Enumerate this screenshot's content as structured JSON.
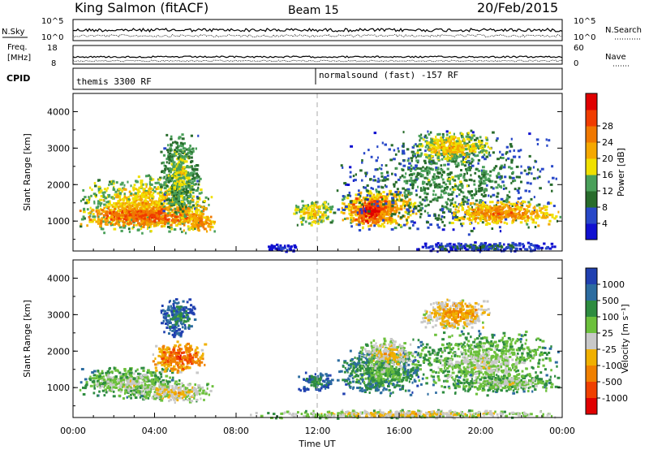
{
  "header": {
    "station": "King Salmon (fitACF)",
    "beam": "Beam 15",
    "date": "20/Feb/2015"
  },
  "summary_panels": {
    "nsky_label": "N.Sky",
    "nsearch_label": "N.Search",
    "freq_label_line1": "Freq.",
    "freq_label_line2": "[MHz]",
    "nave_label": "Nave",
    "cpid_label": "CPID",
    "noise_left_ticks": [
      "10^5",
      "10^0"
    ],
    "noise_right_ticks": [
      "10^5",
      "10^0"
    ],
    "freq_left_ticks": [
      "18",
      "8"
    ],
    "freq_right_ticks": [
      "60",
      "0"
    ],
    "cpid_segments": [
      {
        "label": "themis 3300 RF",
        "start_hour": 0,
        "end_hour": 11.9
      },
      {
        "label": "normalsound (fast) -157 RF",
        "start_hour": 11.9,
        "end_hour": 24
      }
    ]
  },
  "axes": {
    "ylabel": "Slant Range [km]",
    "xlabel": "Time UT",
    "x_ticks": [
      "00:00",
      "04:00",
      "08:00",
      "12:00",
      "16:00",
      "20:00",
      "00:00"
    ],
    "y_ticks": [
      "1000",
      "2000",
      "3000",
      "4000"
    ]
  },
  "chart_data": [
    {
      "type": "heatmap",
      "name": "power",
      "xlim_hours": [
        0,
        24
      ],
      "ylim_km": [
        180,
        4500
      ],
      "colorbar": {
        "label": "Power [dB]",
        "ticks": [
          "4",
          "8",
          "12",
          "16",
          "20",
          "24",
          "28"
        ],
        "colors": [
          "#1010d0",
          "#2848c8",
          "#286c2c",
          "#4aa05a",
          "#f0e000",
          "#f5a800",
          "#f07800",
          "#f03c00",
          "#e00000"
        ]
      },
      "patches": [
        {
          "t0": 0.1,
          "t1": 6.9,
          "r0": 650,
          "r1": 2300,
          "level": 5
        },
        {
          "t0": 0.2,
          "t1": 6.8,
          "r0": 850,
          "r1": 1500,
          "level": 7
        },
        {
          "t0": 4.2,
          "t1": 6.2,
          "r0": 1200,
          "r1": 3500,
          "level": 4
        },
        {
          "t0": 5.2,
          "t1": 7.0,
          "r0": 700,
          "r1": 1300,
          "level": 6
        },
        {
          "t0": 9.3,
          "t1": 11.2,
          "r0": 180,
          "r1": 400,
          "level": 1
        },
        {
          "t0": 10.7,
          "t1": 12.8,
          "r0": 900,
          "r1": 1600,
          "level": 5
        },
        {
          "t0": 12.9,
          "t1": 17.0,
          "r0": 800,
          "r1": 1900,
          "level": 6
        },
        {
          "t0": 13.5,
          "t1": 15.5,
          "r0": 900,
          "r1": 1700,
          "level": 8
        },
        {
          "t0": 12.8,
          "t1": 24.0,
          "r0": 600,
          "r1": 3600,
          "level": 3
        },
        {
          "t0": 16.5,
          "t1": 20.5,
          "r0": 2600,
          "r1": 3500,
          "level": 5
        },
        {
          "t0": 18.0,
          "t1": 24.0,
          "r0": 900,
          "r1": 1600,
          "level": 6
        },
        {
          "t0": 16.5,
          "t1": 24.0,
          "r0": 180,
          "r1": 450,
          "level": 2
        }
      ]
    },
    {
      "type": "heatmap",
      "name": "velocity",
      "xlim_hours": [
        0,
        24
      ],
      "ylim_km": [
        180,
        4500
      ],
      "colorbar": {
        "label": "Velocity [m s⁻¹]",
        "ticks": [
          "1000",
          "500",
          "100",
          "25",
          "-25",
          "-100",
          "-500",
          "-1000"
        ],
        "colors": [
          "#2040b0",
          "#2c6ca0",
          "#2e8c40",
          "#6cc03c",
          "#c8c8c8",
          "#f0b000",
          "#f08000",
          "#f04000",
          "#e00000"
        ]
      },
      "patches": [
        {
          "t0": 0.1,
          "t1": 5.2,
          "r0": 700,
          "r1": 1600,
          "level": 4
        },
        {
          "t0": 3.8,
          "t1": 6.5,
          "r0": 1400,
          "r1": 2300,
          "level": 7
        },
        {
          "t0": 4.2,
          "t1": 6.0,
          "r0": 2400,
          "r1": 3500,
          "level": 2
        },
        {
          "t0": 3.0,
          "t1": 7.0,
          "r0": 600,
          "r1": 1200,
          "level": 5
        },
        {
          "t0": 11.0,
          "t1": 12.8,
          "r0": 900,
          "r1": 1500,
          "level": 2
        },
        {
          "t0": 12.8,
          "t1": 17.2,
          "r0": 800,
          "r1": 2100,
          "level": 3
        },
        {
          "t0": 14.0,
          "t1": 16.8,
          "r0": 1500,
          "r1": 2400,
          "level": 5
        },
        {
          "t0": 16.4,
          "t1": 23.8,
          "r0": 800,
          "r1": 2600,
          "level": 4
        },
        {
          "t0": 17.0,
          "t1": 20.5,
          "r0": 2600,
          "r1": 3500,
          "level": 6
        },
        {
          "t0": 18.5,
          "t1": 24.0,
          "r0": 900,
          "r1": 1400,
          "level": 4
        },
        {
          "t0": 8.5,
          "t1": 24.0,
          "r0": 180,
          "r1": 420,
          "level": 5
        }
      ]
    }
  ]
}
